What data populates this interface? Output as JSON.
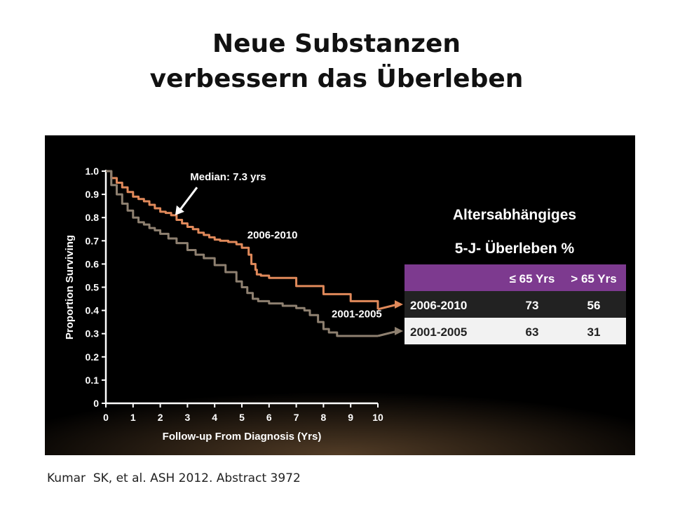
{
  "slide": {
    "title_line1": "Neue Substanzen",
    "title_line2": "verbessern das Überleben",
    "citation": "Kumar  SK, et al. ASH 2012. Abstract 3972"
  },
  "chart_data": {
    "type": "line",
    "title": "",
    "xlabel": "Follow-up From Diagnosis (Yrs)",
    "ylabel": "Proportion Surviving",
    "xlim": [
      0,
      10
    ],
    "ylim": [
      0,
      1.0
    ],
    "x_ticks": [
      0,
      1,
      2,
      3,
      4,
      5,
      6,
      7,
      8,
      9,
      10
    ],
    "y_ticks": [
      0,
      0.1,
      0.2,
      0.3,
      0.4,
      0.5,
      0.6,
      0.7,
      0.8,
      0.9,
      1.0
    ],
    "y_tick_labels": [
      "0",
      "0.1",
      "0.2",
      "0.3",
      "0.4",
      "0.5",
      "0.6",
      "0.7",
      "0.8",
      "0.9",
      "1.0"
    ],
    "grid": false,
    "series": [
      {
        "name": "2006-2010",
        "color": "#e0895a",
        "points": [
          [
            0,
            1.0
          ],
          [
            0.2,
            0.97
          ],
          [
            0.4,
            0.95
          ],
          [
            0.6,
            0.93
          ],
          [
            0.8,
            0.91
          ],
          [
            1.0,
            0.89
          ],
          [
            1.2,
            0.88
          ],
          [
            1.4,
            0.87
          ],
          [
            1.6,
            0.855
          ],
          [
            1.8,
            0.84
          ],
          [
            2.0,
            0.825
          ],
          [
            2.2,
            0.82
          ],
          [
            2.4,
            0.81
          ],
          [
            2.6,
            0.79
          ],
          [
            2.8,
            0.775
          ],
          [
            3.0,
            0.76
          ],
          [
            3.2,
            0.75
          ],
          [
            3.4,
            0.735
          ],
          [
            3.6,
            0.725
          ],
          [
            3.8,
            0.715
          ],
          [
            4.0,
            0.705
          ],
          [
            4.2,
            0.7
          ],
          [
            4.5,
            0.695
          ],
          [
            4.8,
            0.685
          ],
          [
            5.0,
            0.67
          ],
          [
            5.2,
            0.67
          ],
          [
            5.25,
            0.64
          ],
          [
            5.35,
            0.6
          ],
          [
            5.5,
            0.575
          ],
          [
            5.55,
            0.555
          ],
          [
            5.7,
            0.55
          ],
          [
            6.0,
            0.54
          ],
          [
            7.0,
            0.505
          ],
          [
            8.0,
            0.47
          ],
          [
            9.0,
            0.44
          ],
          [
            10.0,
            0.405
          ]
        ]
      },
      {
        "name": "2001-2005",
        "color": "#8e8070",
        "points": [
          [
            0,
            1.0
          ],
          [
            0.2,
            0.94
          ],
          [
            0.4,
            0.9
          ],
          [
            0.6,
            0.86
          ],
          [
            0.8,
            0.83
          ],
          [
            1.0,
            0.8
          ],
          [
            1.2,
            0.78
          ],
          [
            1.4,
            0.77
          ],
          [
            1.6,
            0.755
          ],
          [
            1.8,
            0.745
          ],
          [
            2.0,
            0.73
          ],
          [
            2.3,
            0.71
          ],
          [
            2.6,
            0.69
          ],
          [
            3.0,
            0.66
          ],
          [
            3.3,
            0.64
          ],
          [
            3.6,
            0.625
          ],
          [
            4.0,
            0.595
          ],
          [
            4.4,
            0.565
          ],
          [
            4.8,
            0.525
          ],
          [
            5.0,
            0.5
          ],
          [
            5.2,
            0.475
          ],
          [
            5.4,
            0.45
          ],
          [
            5.6,
            0.44
          ],
          [
            6.0,
            0.43
          ],
          [
            6.5,
            0.42
          ],
          [
            7.0,
            0.41
          ],
          [
            7.3,
            0.4
          ],
          [
            7.5,
            0.38
          ],
          [
            7.8,
            0.35
          ],
          [
            8.0,
            0.32
          ],
          [
            8.2,
            0.305
          ],
          [
            8.5,
            0.29
          ],
          [
            9.0,
            0.29
          ],
          [
            10.0,
            0.29
          ]
        ]
      }
    ],
    "annotations": [
      {
        "text": "Median: 7.3 yrs",
        "x": 3.1,
        "y": 0.96
      },
      {
        "text": "2006-2010",
        "x": 5.2,
        "y": 0.71
      },
      {
        "text": "2001-2005",
        "x": 8.3,
        "y": 0.37
      }
    ]
  },
  "inset": {
    "heading_line1": "Altersabhängiges",
    "heading_line2": "5-J- Überleben  %",
    "columns": [
      "",
      "≤ 65 Yrs",
      "> 65 Yrs"
    ],
    "rows": [
      {
        "label": "2006-2010",
        "values": [
          "73",
          "56"
        ]
      },
      {
        "label": "2001-2005",
        "values": [
          "63",
          "31"
        ]
      }
    ],
    "header_color": "#7d3a8f",
    "row1_color": "#222222",
    "row2_color": "#f2f2f2"
  }
}
